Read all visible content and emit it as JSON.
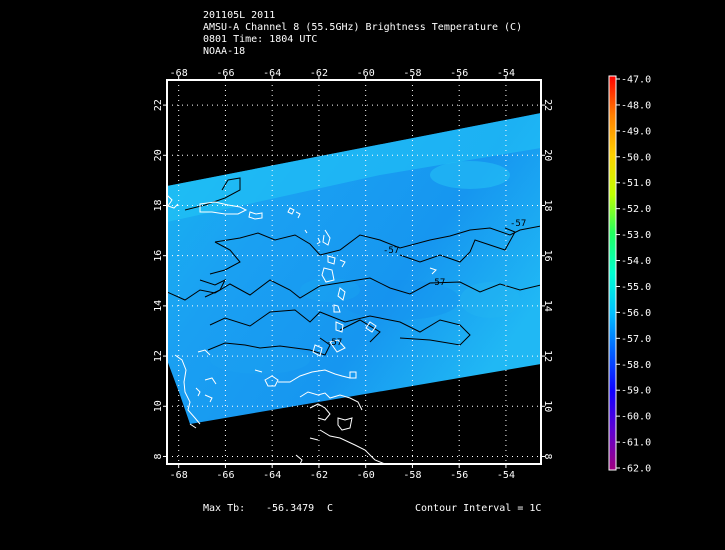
{
  "header": {
    "line1": "201105L 2011",
    "line2": "AMSU-A Channel 8 (55.5GHz) Brightness Temperature (C)",
    "line3": "0801 Time: 1804 UTC",
    "line4": "NOAA-18"
  },
  "axes": {
    "lon_ticks": [
      "-68",
      "-66",
      "-64",
      "-62",
      "-60",
      "-58",
      "-56",
      "-54"
    ],
    "lat_ticks": [
      "22",
      "20",
      "18",
      "16",
      "14",
      "12",
      "10",
      "8"
    ],
    "lon_range": [
      -68.5,
      -52.5
    ],
    "lat_range": [
      7.7,
      23.0
    ],
    "grid": "dotted"
  },
  "colorbar": {
    "labels": [
      "-47.0",
      "-48.0",
      "-49.0",
      "-50.0",
      "-51.0",
      "-52.0",
      "-53.0",
      "-54.0",
      "-55.0",
      "-56.0",
      "-57.0",
      "-58.0",
      "-59.0",
      "-60.0",
      "-61.0",
      "-62.0"
    ],
    "colors": [
      "#ff0000",
      "#ff6a00",
      "#ffb000",
      "#ffe600",
      "#c0ff00",
      "#40ff40",
      "#00ff9a",
      "#00ffe0",
      "#00e0ff",
      "#00b0ff",
      "#0078ff",
      "#0030ff",
      "#2000ff",
      "#6000e0",
      "#8000b0",
      "#a00080"
    ]
  },
  "contours": {
    "labels": [
      "-57",
      "-57",
      "-57",
      "-57"
    ]
  },
  "footer": {
    "max_tb_label": "Max Tb:",
    "max_tb_value": "-56.3479",
    "max_tb_unit": "C",
    "contour_interval": "Contour Interval = 1C"
  },
  "colors": {
    "swath_fill": "#16a6f0",
    "swath_light": "#22d8f8",
    "coastline": "#ffffff",
    "contour": "#000000"
  }
}
